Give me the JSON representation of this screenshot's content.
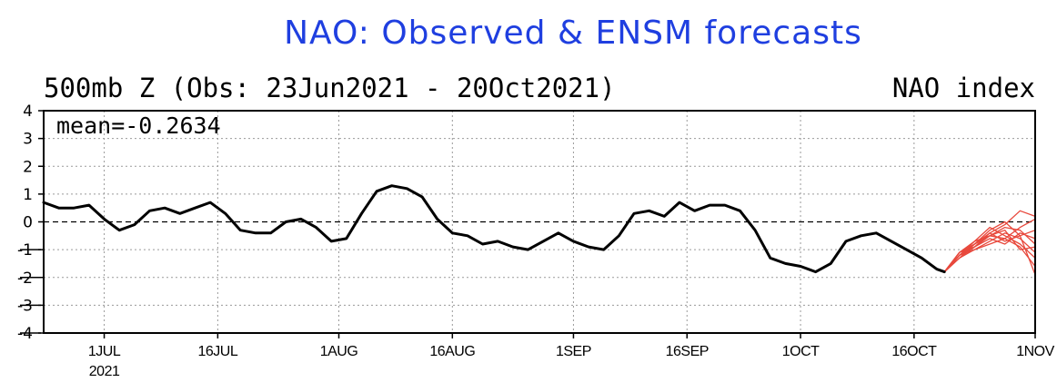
{
  "chart_data": {
    "type": "line",
    "title": "NAO: Observed & ENSM forecasts",
    "subtitle_left": "500mb Z (Obs: 23Jun2021 - 20Oct2021)",
    "subtitle_right": "NAO index",
    "annotation": "mean=-0.2634",
    "ylim": [
      -4,
      4
    ],
    "yticks": [
      -4,
      -3,
      -2,
      -1,
      0,
      1,
      2,
      3,
      4
    ],
    "xlim": [
      "2021-06-23",
      "2021-11-01"
    ],
    "xticks": [
      {
        "date": "2021-07-01",
        "label": "1JUL",
        "sublabel": "2021"
      },
      {
        "date": "2021-07-16",
        "label": "16JUL",
        "sublabel": ""
      },
      {
        "date": "2021-08-01",
        "label": "1AUG",
        "sublabel": ""
      },
      {
        "date": "2021-08-16",
        "label": "16AUG",
        "sublabel": ""
      },
      {
        "date": "2021-09-01",
        "label": "1SEP",
        "sublabel": ""
      },
      {
        "date": "2021-09-16",
        "label": "16SEP",
        "sublabel": ""
      },
      {
        "date": "2021-10-01",
        "label": "1OCT",
        "sublabel": ""
      },
      {
        "date": "2021-10-16",
        "label": "16OCT",
        "sublabel": ""
      },
      {
        "date": "2021-11-01",
        "label": "1NOV",
        "sublabel": ""
      }
    ],
    "grid": true,
    "zero_line": true,
    "colors": {
      "observed": "#000000",
      "forecast": "#e8483c",
      "title": "#1f3fe0"
    },
    "observed": {
      "x": [
        "2021-06-23",
        "2021-06-25",
        "2021-06-27",
        "2021-06-29",
        "2021-07-01",
        "2021-07-03",
        "2021-07-05",
        "2021-07-07",
        "2021-07-09",
        "2021-07-11",
        "2021-07-13",
        "2021-07-15",
        "2021-07-17",
        "2021-07-19",
        "2021-07-21",
        "2021-07-23",
        "2021-07-25",
        "2021-07-27",
        "2021-07-29",
        "2021-07-31",
        "2021-08-02",
        "2021-08-04",
        "2021-08-06",
        "2021-08-08",
        "2021-08-10",
        "2021-08-12",
        "2021-08-14",
        "2021-08-16",
        "2021-08-18",
        "2021-08-20",
        "2021-08-22",
        "2021-08-24",
        "2021-08-26",
        "2021-08-28",
        "2021-08-30",
        "2021-09-01",
        "2021-09-03",
        "2021-09-05",
        "2021-09-07",
        "2021-09-09",
        "2021-09-11",
        "2021-09-13",
        "2021-09-15",
        "2021-09-17",
        "2021-09-19",
        "2021-09-21",
        "2021-09-23",
        "2021-09-25",
        "2021-09-27",
        "2021-09-29",
        "2021-10-01",
        "2021-10-03",
        "2021-10-05",
        "2021-10-07",
        "2021-10-09",
        "2021-10-11",
        "2021-10-13",
        "2021-10-15",
        "2021-10-17",
        "2021-10-19",
        "2021-10-20"
      ],
      "y": [
        0.7,
        0.5,
        0.5,
        0.6,
        0.1,
        -0.3,
        -0.1,
        0.4,
        0.5,
        0.3,
        0.5,
        0.7,
        0.3,
        -0.3,
        -0.4,
        -0.4,
        0.0,
        0.1,
        -0.2,
        -0.7,
        -0.6,
        0.3,
        1.1,
        1.3,
        1.2,
        0.9,
        0.1,
        -0.4,
        -0.5,
        -0.8,
        -0.7,
        -0.9,
        -1.0,
        -0.7,
        -0.4,
        -0.7,
        -0.9,
        -1.0,
        -0.5,
        0.3,
        0.4,
        0.2,
        0.7,
        0.4,
        0.6,
        0.6,
        0.4,
        -0.3,
        -1.3,
        -1.5,
        -1.6,
        -1.8,
        -1.5,
        -0.7,
        -0.5,
        -0.4,
        -0.7,
        -1.0,
        -1.3,
        -1.7,
        -1.8
      ]
    },
    "forecast_x": [
      "2021-10-20",
      "2021-10-22",
      "2021-10-24",
      "2021-10-26",
      "2021-10-28",
      "2021-10-30",
      "2021-11-01"
    ],
    "forecast_members": [
      [
        -1.8,
        -1.2,
        -0.8,
        -0.4,
        -0.1,
        0.4,
        0.2
      ],
      [
        -1.8,
        -1.3,
        -0.9,
        -0.5,
        -0.2,
        -0.3,
        -0.8
      ],
      [
        -1.8,
        -1.1,
        -0.7,
        -0.5,
        -0.6,
        -0.9,
        -1.6
      ],
      [
        -1.8,
        -1.2,
        -1.0,
        -0.7,
        -0.4,
        -0.6,
        -1.1
      ],
      [
        -1.8,
        -1.3,
        -0.8,
        -0.3,
        0.0,
        -0.5,
        -0.3
      ],
      [
        -1.8,
        -1.1,
        -0.9,
        -0.6,
        -0.8,
        -0.4,
        -0.6
      ],
      [
        -1.8,
        -1.2,
        -0.7,
        -0.2,
        -0.5,
        -0.8,
        -1.3
      ],
      [
        -1.8,
        -1.3,
        -1.0,
        -0.8,
        -0.6,
        -0.2,
        0.1
      ],
      [
        -1.8,
        -1.1,
        -0.8,
        -0.5,
        -0.3,
        -1.0,
        -0.9
      ],
      [
        -1.8,
        -1.2,
        -0.9,
        -0.4,
        -0.7,
        -0.5,
        -1.9
      ]
    ]
  }
}
